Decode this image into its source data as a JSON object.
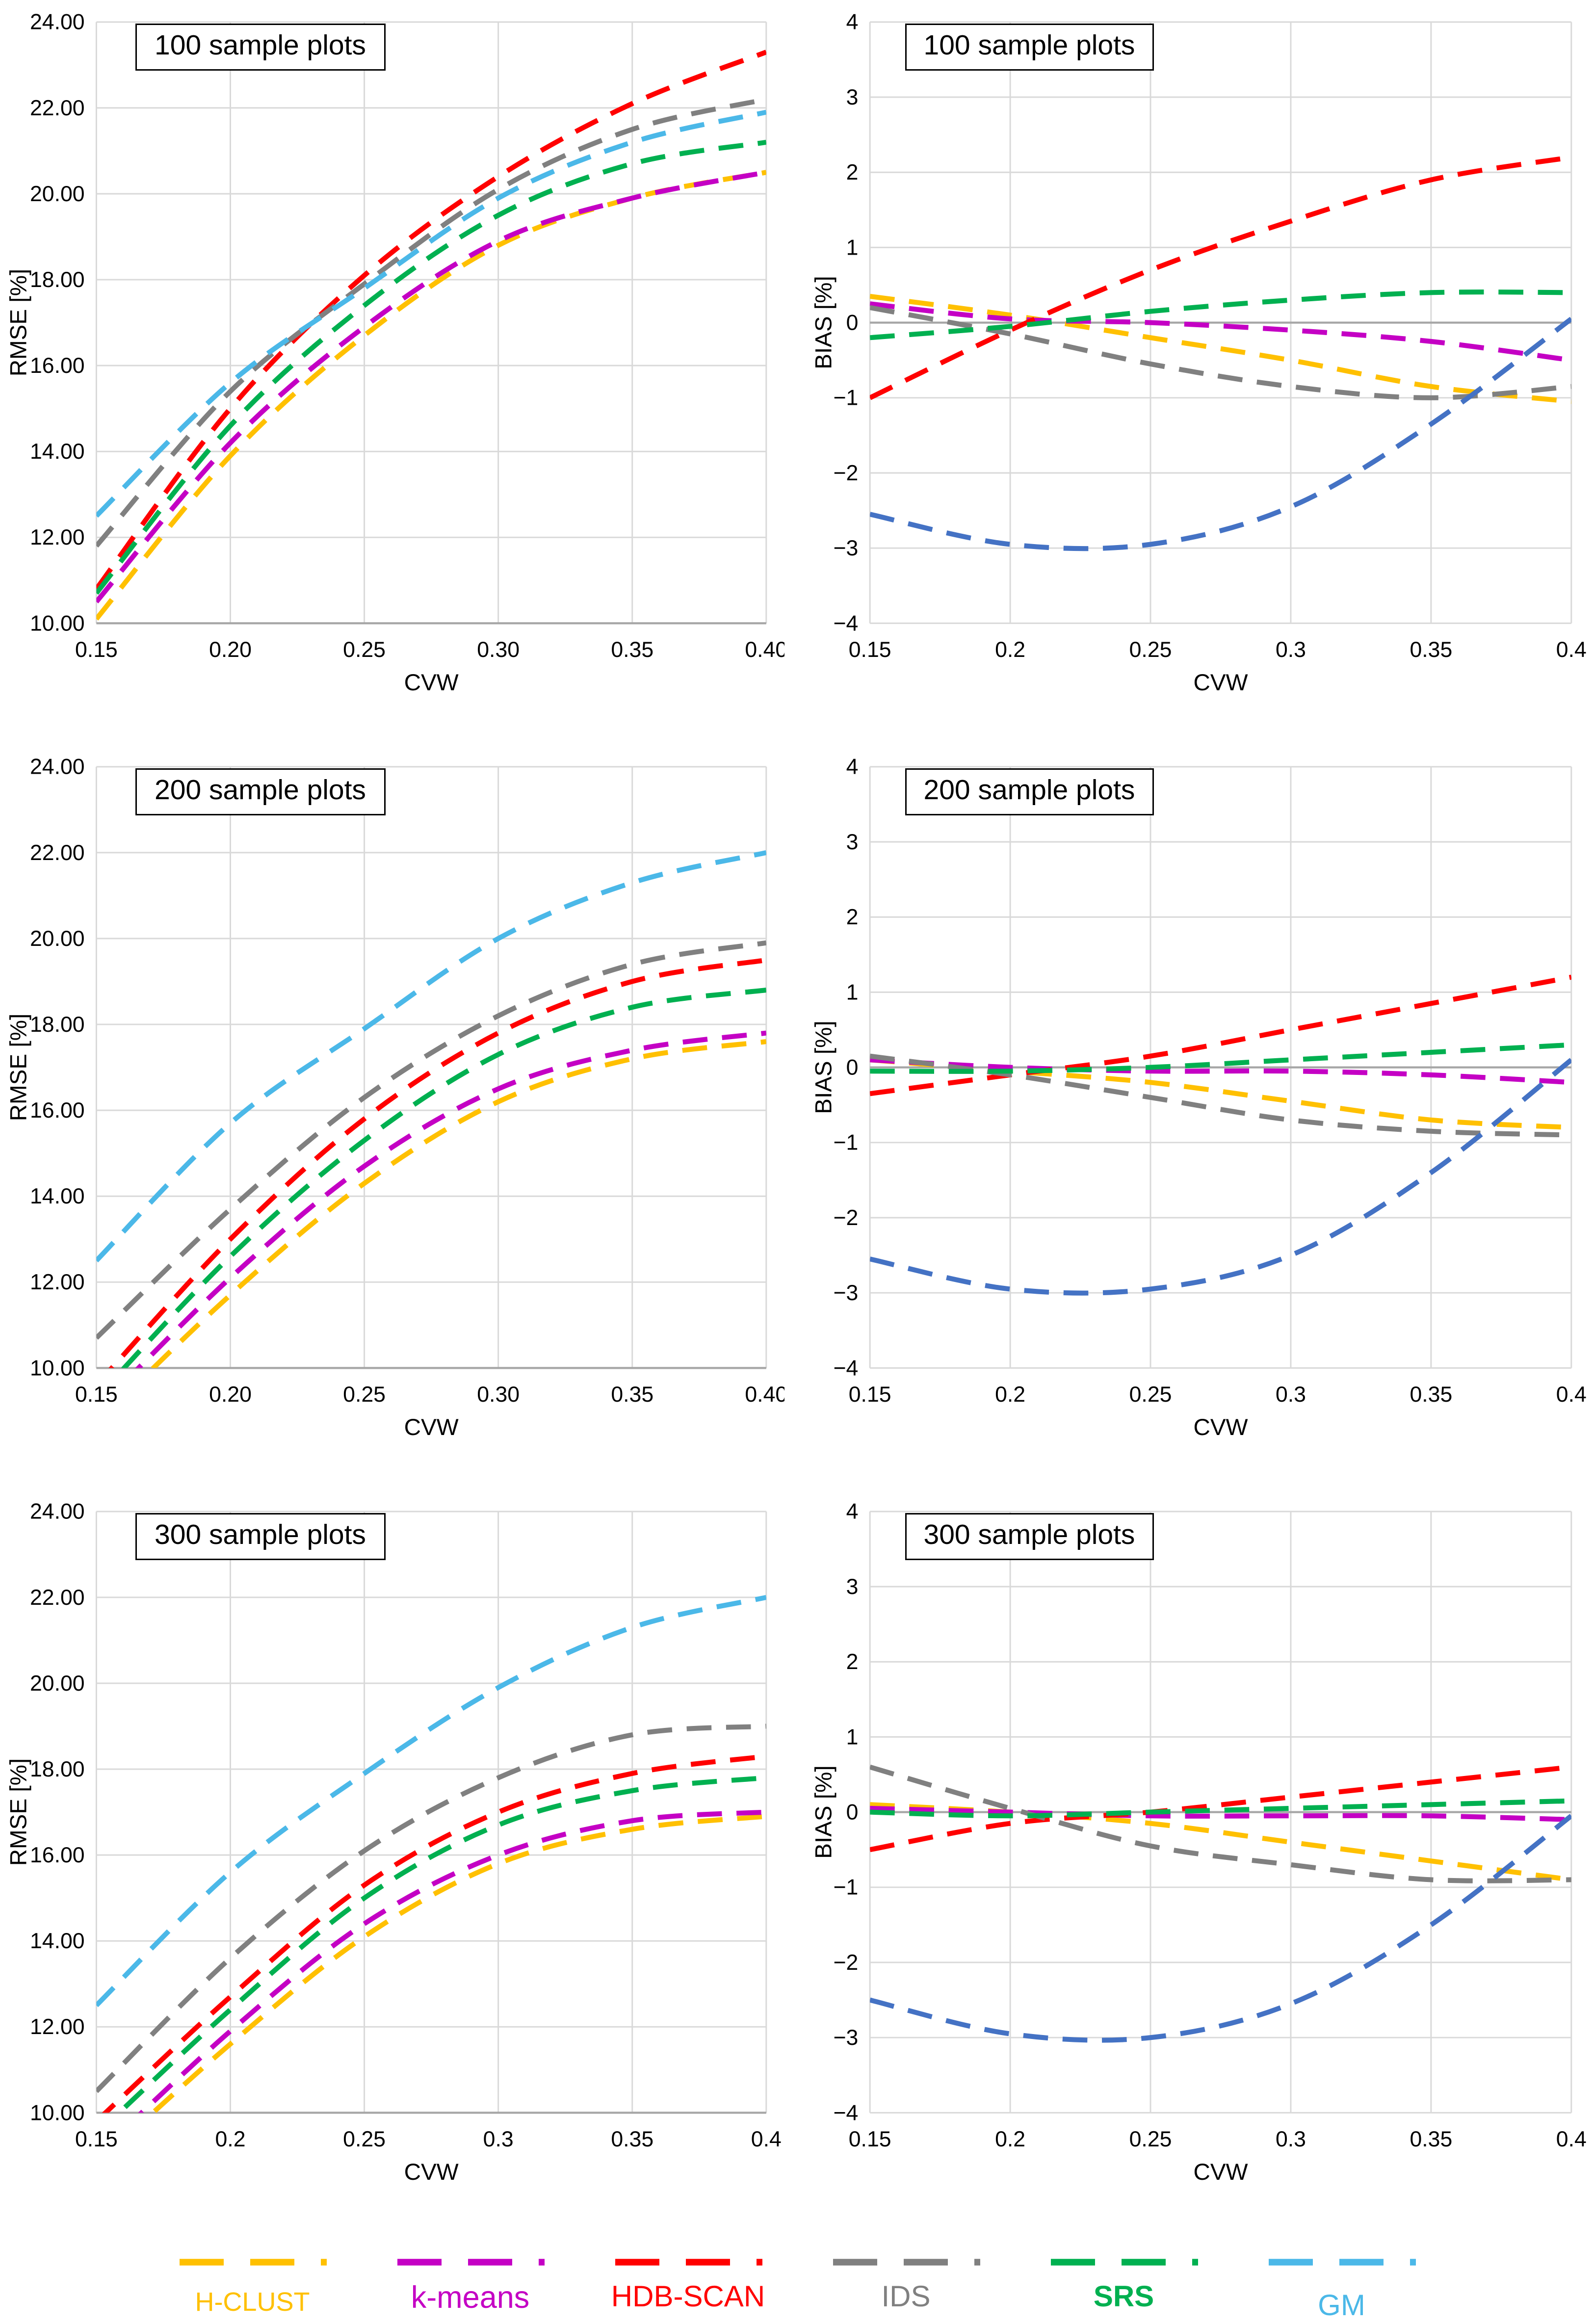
{
  "figure": {
    "legend": [
      {
        "name": "H-CLUST",
        "color": "#FFC000"
      },
      {
        "name": "k-means",
        "color": "#C400C4"
      },
      {
        "name": "HDB-SCAN",
        "color": "#FF0000"
      },
      {
        "name": "IDS",
        "color": "#808080"
      },
      {
        "name": "SRS",
        "color": "#00B050"
      },
      {
        "name": "GM",
        "color": "#4BB8E8"
      }
    ]
  },
  "chart_data": [
    {
      "id": "rmse-100",
      "type": "line",
      "panel_label": "100 sample plots",
      "xlabel": "CVW",
      "ylabel": "RMSE [%]",
      "xlim": [
        0.15,
        0.4
      ],
      "ylim": [
        10,
        24
      ],
      "xticks": [
        "0.15",
        "0.20",
        "0.25",
        "0.30",
        "0.35",
        "0.40"
      ],
      "xtick_values": [
        0.15,
        0.2,
        0.25,
        0.3,
        0.35,
        0.4
      ],
      "yticks": [
        "10.00",
        "12.00",
        "14.00",
        "16.00",
        "18.00",
        "20.00",
        "22.00",
        "24.00"
      ],
      "ytick_values": [
        10,
        12,
        14,
        16,
        18,
        20,
        22,
        24
      ],
      "zero_axis": false,
      "x": [
        0.15,
        0.2,
        0.25,
        0.3,
        0.35,
        0.4
      ],
      "series": [
        {
          "name": "H-CLUST",
          "values": [
            10.1,
            13.9,
            16.7,
            18.8,
            19.9,
            20.5
          ]
        },
        {
          "name": "k-means",
          "values": [
            10.5,
            14.2,
            16.9,
            18.9,
            19.9,
            20.5
          ]
        },
        {
          "name": "HDB-SCAN",
          "values": [
            10.8,
            15.0,
            18.1,
            20.4,
            22.1,
            23.3
          ]
        },
        {
          "name": "IDS",
          "values": [
            11.8,
            15.4,
            17.9,
            20.1,
            21.5,
            22.2
          ]
        },
        {
          "name": "SRS",
          "values": [
            10.7,
            14.6,
            17.4,
            19.5,
            20.7,
            21.2
          ]
        },
        {
          "name": "GM",
          "values": [
            12.5,
            15.6,
            17.8,
            19.9,
            21.2,
            21.9
          ]
        }
      ]
    },
    {
      "id": "bias-100",
      "type": "line",
      "panel_label": "100 sample plots",
      "xlabel": "CVW",
      "ylabel": "BIAS [%]",
      "xlim": [
        0.15,
        0.4
      ],
      "ylim": [
        -4,
        4
      ],
      "xticks": [
        "0.15",
        "0.2",
        "0.25",
        "0.3",
        "0.35",
        "0.4"
      ],
      "xtick_values": [
        0.15,
        0.2,
        0.25,
        0.3,
        0.35,
        0.4
      ],
      "yticks": [
        "−4",
        "−3",
        "−2",
        "−1",
        "0",
        "1",
        "2",
        "3",
        "4"
      ],
      "ytick_values": [
        -4,
        -3,
        -2,
        -1,
        0,
        1,
        2,
        3,
        4
      ],
      "zero_axis": true,
      "color_overrides": {
        "GM": "#4472C4"
      },
      "x": [
        0.15,
        0.2,
        0.25,
        0.3,
        0.35,
        0.4
      ],
      "series": [
        {
          "name": "H-CLUST",
          "values": [
            0.35,
            0.1,
            -0.2,
            -0.5,
            -0.85,
            -1.05
          ]
        },
        {
          "name": "k-means",
          "values": [
            0.25,
            0.05,
            0.0,
            -0.1,
            -0.25,
            -0.5
          ]
        },
        {
          "name": "HDB-SCAN",
          "values": [
            -1.0,
            -0.1,
            0.7,
            1.35,
            1.9,
            2.2
          ]
        },
        {
          "name": "IDS",
          "values": [
            0.2,
            -0.15,
            -0.55,
            -0.85,
            -1.0,
            -0.85
          ]
        },
        {
          "name": "SRS",
          "values": [
            -0.2,
            -0.05,
            0.15,
            0.3,
            0.4,
            0.4
          ]
        },
        {
          "name": "GM",
          "values": [
            -2.55,
            -2.95,
            -2.95,
            -2.45,
            -1.35,
            0.05
          ]
        }
      ]
    },
    {
      "id": "rmse-200",
      "type": "line",
      "panel_label": "200 sample plots",
      "xlabel": "CVW",
      "ylabel": "RMSE [%]",
      "xlim": [
        0.15,
        0.4
      ],
      "ylim": [
        10,
        24
      ],
      "xticks": [
        "0.15",
        "0.20",
        "0.25",
        "0.30",
        "0.35",
        "0.40"
      ],
      "xtick_values": [
        0.15,
        0.2,
        0.25,
        0.3,
        0.35,
        0.4
      ],
      "yticks": [
        "10.00",
        "12.00",
        "14.00",
        "16.00",
        "18.00",
        "20.00",
        "22.00",
        "24.00"
      ],
      "ytick_values": [
        10,
        12,
        14,
        16,
        18,
        20,
        22,
        24
      ],
      "zero_axis": false,
      "x": [
        0.15,
        0.2,
        0.25,
        0.3,
        0.35,
        0.4
      ],
      "series": [
        {
          "name": "H-CLUST",
          "values": [
            8.7,
            11.7,
            14.3,
            16.2,
            17.2,
            17.6
          ]
        },
        {
          "name": "k-means",
          "values": [
            9.0,
            12.1,
            14.7,
            16.5,
            17.4,
            17.8
          ]
        },
        {
          "name": "HDB-SCAN",
          "values": [
            9.6,
            13.0,
            15.8,
            17.8,
            19.0,
            19.5
          ]
        },
        {
          "name": "IDS",
          "values": [
            10.7,
            13.7,
            16.3,
            18.2,
            19.4,
            19.9
          ]
        },
        {
          "name": "SRS",
          "values": [
            9.3,
            12.6,
            15.3,
            17.3,
            18.4,
            18.8
          ]
        },
        {
          "name": "GM",
          "values": [
            12.5,
            15.7,
            17.9,
            20.0,
            21.3,
            22.0
          ]
        }
      ]
    },
    {
      "id": "bias-200",
      "type": "line",
      "panel_label": "200 sample plots",
      "xlabel": "CVW",
      "ylabel": "BIAS [%]",
      "xlim": [
        0.15,
        0.4
      ],
      "ylim": [
        -4,
        4
      ],
      "xticks": [
        "0.15",
        "0.2",
        "0.25",
        "0.3",
        "0.35",
        "0.4"
      ],
      "xtick_values": [
        0.15,
        0.2,
        0.25,
        0.3,
        0.35,
        0.4
      ],
      "yticks": [
        "−4",
        "−3",
        "−2",
        "−1",
        "0",
        "1",
        "2",
        "3",
        "4"
      ],
      "ytick_values": [
        -4,
        -3,
        -2,
        -1,
        0,
        1,
        2,
        3,
        4
      ],
      "zero_axis": true,
      "color_overrides": {
        "GM": "#4472C4"
      },
      "x": [
        0.15,
        0.2,
        0.25,
        0.3,
        0.35,
        0.4
      ],
      "series": [
        {
          "name": "H-CLUST",
          "values": [
            0.1,
            -0.05,
            -0.2,
            -0.45,
            -0.7,
            -0.8
          ]
        },
        {
          "name": "k-means",
          "values": [
            0.1,
            0.0,
            -0.05,
            -0.05,
            -0.1,
            -0.2
          ]
        },
        {
          "name": "HDB-SCAN",
          "values": [
            -0.35,
            -0.1,
            0.15,
            0.5,
            0.85,
            1.2
          ]
        },
        {
          "name": "IDS",
          "values": [
            0.15,
            -0.1,
            -0.4,
            -0.7,
            -0.85,
            -0.9
          ]
        },
        {
          "name": "SRS",
          "values": [
            -0.05,
            -0.05,
            0.0,
            0.1,
            0.2,
            0.3
          ]
        },
        {
          "name": "GM",
          "values": [
            -2.55,
            -2.95,
            -2.95,
            -2.5,
            -1.4,
            0.1
          ]
        }
      ]
    },
    {
      "id": "rmse-300",
      "type": "line",
      "panel_label": "300 sample plots",
      "xlabel": "CVW",
      "ylabel": "RMSE [%]",
      "xlim": [
        0.15,
        0.4
      ],
      "ylim": [
        10,
        24
      ],
      "xticks": [
        "0.15",
        "0.2",
        "0.25",
        "0.3",
        "0.35",
        "0.4"
      ],
      "xtick_values": [
        0.15,
        0.2,
        0.25,
        0.3,
        0.35,
        0.4
      ],
      "yticks": [
        "10.00",
        "12.00",
        "14.00",
        "16.00",
        "18.00",
        "20.00",
        "22.00",
        "24.00"
      ],
      "ytick_values": [
        10,
        12,
        14,
        16,
        18,
        20,
        22,
        24
      ],
      "zero_axis": false,
      "x": [
        0.15,
        0.2,
        0.25,
        0.3,
        0.35,
        0.4
      ],
      "series": [
        {
          "name": "H-CLUST",
          "values": [
            8.8,
            11.6,
            14.1,
            15.8,
            16.6,
            16.9
          ]
        },
        {
          "name": "k-means",
          "values": [
            9.0,
            11.9,
            14.4,
            16.0,
            16.8,
            17.0
          ]
        },
        {
          "name": "HDB-SCAN",
          "values": [
            9.8,
            12.7,
            15.3,
            17.0,
            17.9,
            18.3
          ]
        },
        {
          "name": "IDS",
          "values": [
            10.5,
            13.6,
            16.1,
            17.8,
            18.8,
            19.0
          ]
        },
        {
          "name": "SRS",
          "values": [
            9.5,
            12.4,
            15.0,
            16.7,
            17.5,
            17.8
          ]
        },
        {
          "name": "GM",
          "values": [
            12.5,
            15.6,
            17.9,
            19.9,
            21.3,
            22.0
          ]
        }
      ]
    },
    {
      "id": "bias-300",
      "type": "line",
      "panel_label": "300 sample plots",
      "xlabel": "CVW",
      "ylabel": "BIAS [%]",
      "xlim": [
        0.15,
        0.4
      ],
      "ylim": [
        -4,
        4
      ],
      "xticks": [
        "0.15",
        "0.2",
        "0.25",
        "0.3",
        "0.35",
        "0.4"
      ],
      "xtick_values": [
        0.15,
        0.2,
        0.25,
        0.3,
        0.35,
        0.4
      ],
      "yticks": [
        "−4",
        "−3",
        "−2",
        "−1",
        "0",
        "1",
        "2",
        "3",
        "4"
      ],
      "ytick_values": [
        -4,
        -3,
        -2,
        -1,
        0,
        1,
        2,
        3,
        4
      ],
      "zero_axis": true,
      "color_overrides": {
        "GM": "#4472C4"
      },
      "x": [
        0.15,
        0.2,
        0.25,
        0.3,
        0.35,
        0.4
      ],
      "series": [
        {
          "name": "H-CLUST",
          "values": [
            0.1,
            0.0,
            -0.15,
            -0.4,
            -0.65,
            -0.9
          ]
        },
        {
          "name": "k-means",
          "values": [
            0.05,
            0.0,
            -0.05,
            -0.05,
            -0.05,
            -0.1
          ]
        },
        {
          "name": "HDB-SCAN",
          "values": [
            -0.5,
            -0.15,
            0.0,
            0.2,
            0.4,
            0.6
          ]
        },
        {
          "name": "IDS",
          "values": [
            0.6,
            0.05,
            -0.45,
            -0.7,
            -0.9,
            -0.9
          ]
        },
        {
          "name": "SRS",
          "values": [
            0.0,
            -0.05,
            0.0,
            0.05,
            0.1,
            0.15
          ]
        },
        {
          "name": "GM",
          "values": [
            -2.5,
            -2.95,
            -3.0,
            -2.55,
            -1.5,
            -0.05
          ]
        }
      ]
    }
  ]
}
